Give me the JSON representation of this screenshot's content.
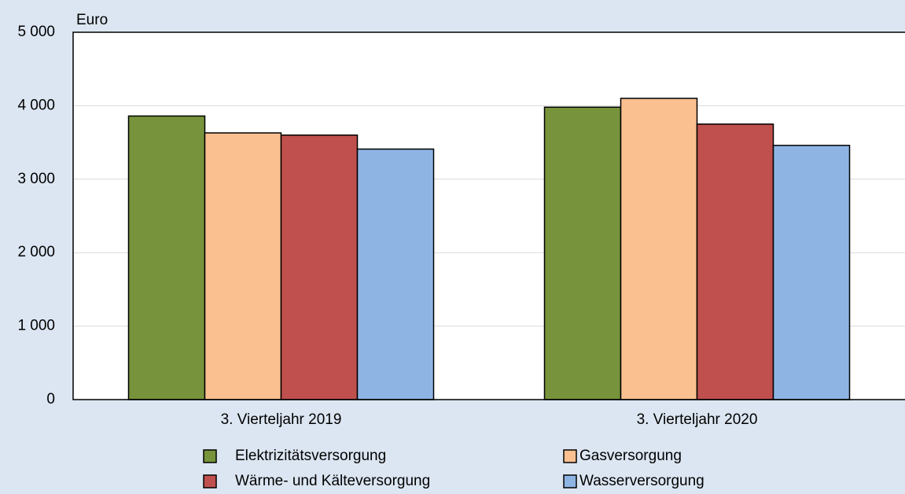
{
  "chart_data": {
    "type": "bar",
    "y_label": "Euro",
    "categories": [
      "3. Vierteljahr 2019",
      "3. Vierteljahr 2020"
    ],
    "series": [
      {
        "name": "Elektrizitätsversorgung",
        "color": "#77933c",
        "values": [
          3860,
          3980
        ]
      },
      {
        "name": "Gasversorgung",
        "color": "#fac090",
        "values": [
          3630,
          4100
        ]
      },
      {
        "name": "Wärme- und Kälteversorgung",
        "color": "#c0504d",
        "values": [
          3600,
          3750
        ]
      },
      {
        "name": "Wasserversorgung",
        "color": "#8eb4e3",
        "values": [
          3410,
          3460
        ]
      }
    ],
    "ylim": [
      0,
      5000
    ],
    "yticks": [
      0,
      {
        "value": 1000,
        "label": "1 000"
      },
      {
        "value": 2000,
        "label": "2 000"
      },
      {
        "value": 3000,
        "label": "3 000"
      },
      {
        "value": 4000,
        "label": "4 000"
      },
      {
        "value": 5000,
        "label": "5 000"
      }
    ],
    "grid": true
  }
}
